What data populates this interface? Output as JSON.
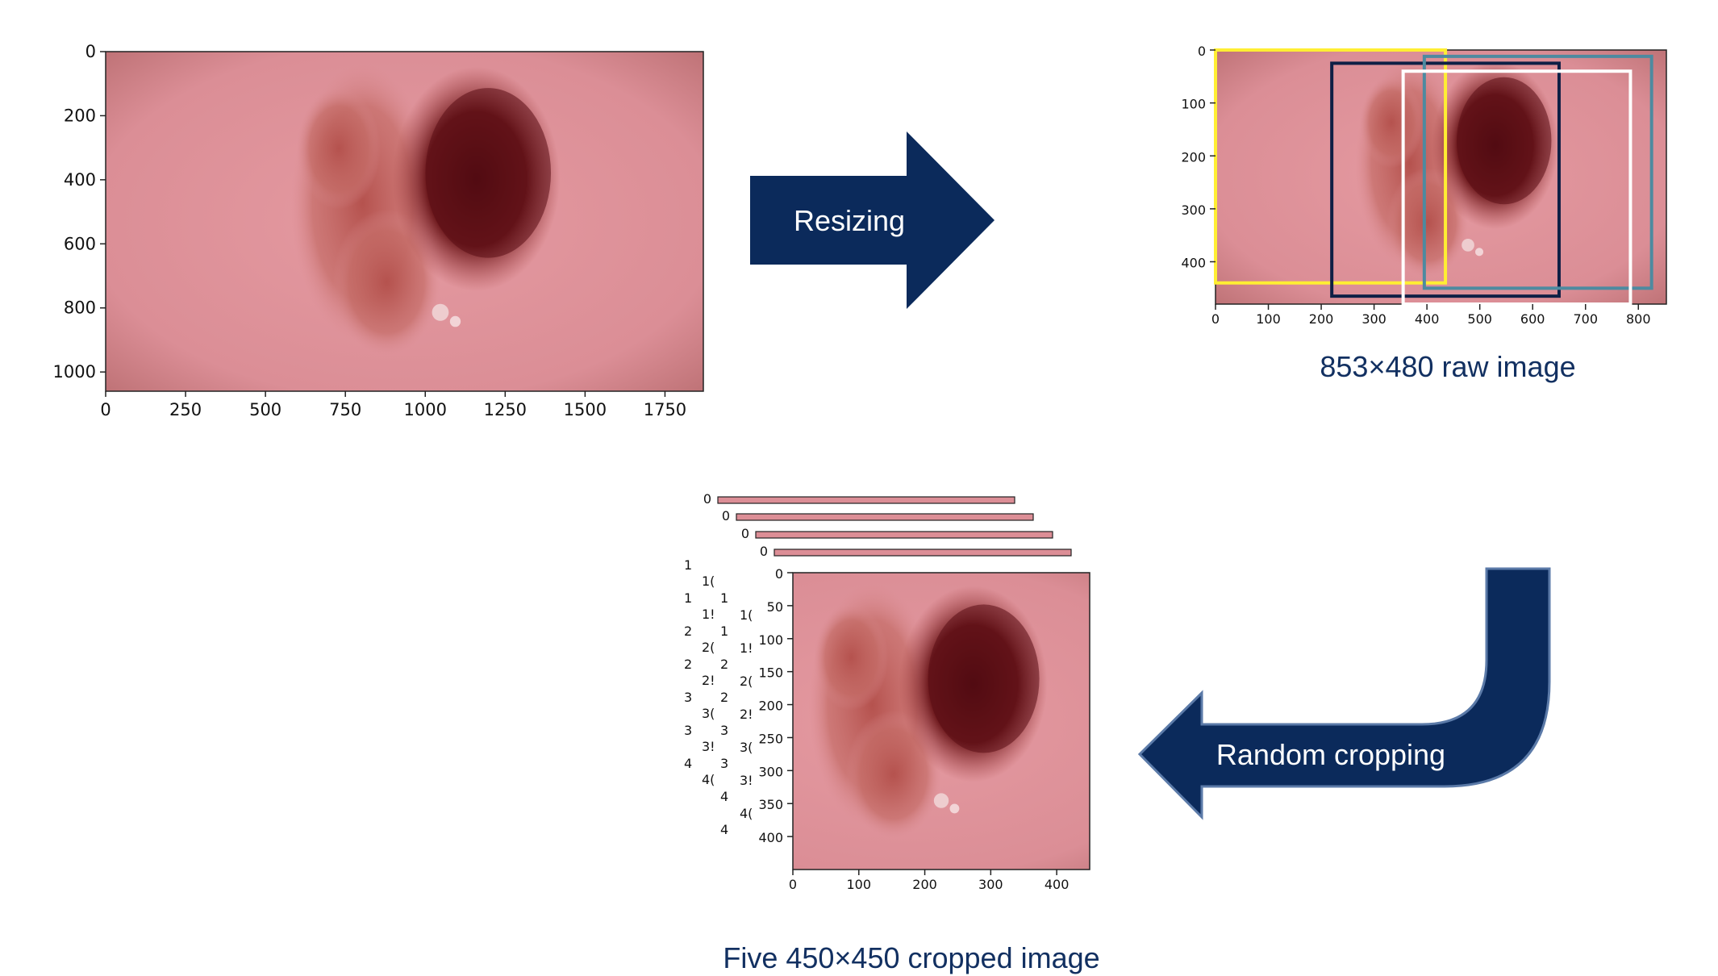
{
  "colors": {
    "arrow_fill": "#0b2a5b",
    "arrow_stroke": "#5b7aa8",
    "caption_text": "#123061",
    "crop_box_1": "#ffee33",
    "crop_box_2": "#0e1f45",
    "crop_box_3": "#4d8aa0",
    "crop_box_4": "#ffffff",
    "skin": "#dc8e96",
    "lesion_dark": "#5c0f16",
    "lesion_light": "#b14a48"
  },
  "original_image": {
    "x_ticks": [
      "0",
      "250",
      "500",
      "750",
      "1000",
      "1250",
      "1500",
      "1750"
    ],
    "y_ticks": [
      "0",
      "200",
      "400",
      "600",
      "800",
      "1000"
    ]
  },
  "resize_arrow": {
    "label": "Resizing"
  },
  "resized_image": {
    "x_ticks": [
      "0",
      "100",
      "200",
      "300",
      "400",
      "500",
      "600",
      "700",
      "800"
    ],
    "y_ticks": [
      "0",
      "100",
      "200",
      "300",
      "400"
    ],
    "caption": "853×480 raw image",
    "crop_boxes": [
      {
        "x0": 0,
        "y0": 0,
        "x1": 435,
        "y1": 440,
        "color": "#ffee33"
      },
      {
        "x0": 220,
        "y0": 25,
        "x1": 650,
        "y1": 465,
        "color": "#0e1f45"
      },
      {
        "x0": 395,
        "y0": 12,
        "x1": 825,
        "y1": 450,
        "color": "#4d8aa0"
      },
      {
        "x0": 355,
        "y0": 40,
        "x1": 785,
        "y1": 480,
        "color": "#ffffff"
      }
    ]
  },
  "crop_arrow": {
    "label": "Random cropping"
  },
  "cropped_stack": {
    "back_zero_ticks": [
      "0",
      "0",
      "0",
      "0"
    ],
    "partial_tick_columns": [
      [
        "1",
        "1",
        "2",
        "2",
        "3",
        "3",
        "4"
      ],
      [
        "1(",
        "1!",
        "2(",
        "2!",
        "3(",
        "3!",
        "4("
      ],
      [
        "1",
        "1",
        "2",
        "2",
        "3",
        "3",
        "4",
        "4"
      ],
      [
        "1(",
        "1!",
        "2(",
        "2!",
        "3(",
        "3!",
        "4("
      ]
    ],
    "front_x_ticks": [
      "0",
      "100",
      "200",
      "300",
      "400"
    ],
    "front_y_ticks": [
      "0",
      "50",
      "100",
      "150",
      "200",
      "250",
      "300",
      "350",
      "400"
    ],
    "caption": "Five 450×450 cropped image"
  }
}
